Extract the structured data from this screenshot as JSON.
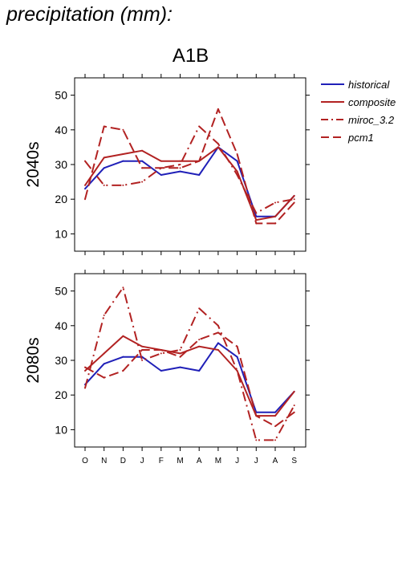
{
  "page": {
    "title": "precipitation (mm):",
    "scenario": "A1B"
  },
  "colors": {
    "historical": "#2020b8",
    "models": "#b22222",
    "axis": "#000000"
  },
  "chart_data": [
    {
      "type": "line",
      "panel_label": "2040s",
      "categories": [
        "O",
        "N",
        "D",
        "J",
        "F",
        "M",
        "A",
        "M",
        "J",
        "J",
        "A",
        "S"
      ],
      "ylim": [
        5,
        55
      ],
      "yticks": [
        10,
        20,
        30,
        40,
        50
      ],
      "grid": false,
      "legend": "outside-right",
      "series": [
        {
          "name": "historical",
          "style": "solid",
          "values": [
            23,
            29,
            31,
            31,
            27,
            28,
            27,
            35,
            31,
            15,
            15,
            21
          ]
        },
        {
          "name": "composite",
          "style": "solid",
          "values": [
            24,
            32,
            33,
            34,
            31,
            31,
            31,
            35,
            28,
            14,
            15,
            21
          ]
        },
        {
          "name": "miroc_3.2",
          "style": "dashdot",
          "values": [
            31,
            24,
            24,
            25,
            29,
            30,
            41,
            36,
            27,
            16,
            19,
            20
          ]
        },
        {
          "name": "pcm1",
          "style": "dashed",
          "values": [
            20,
            41,
            40,
            29,
            29,
            29,
            31,
            46,
            33,
            13,
            13,
            19
          ]
        }
      ]
    },
    {
      "type": "line",
      "panel_label": "2080s",
      "categories": [
        "O",
        "N",
        "D",
        "J",
        "F",
        "M",
        "A",
        "M",
        "J",
        "J",
        "A",
        "S"
      ],
      "ylim": [
        5,
        55
      ],
      "yticks": [
        10,
        20,
        30,
        40,
        50
      ],
      "grid": false,
      "series": [
        {
          "name": "historical",
          "style": "solid",
          "values": [
            23,
            29,
            31,
            31,
            27,
            28,
            27,
            35,
            31,
            15,
            15,
            21
          ]
        },
        {
          "name": "composite",
          "style": "solid",
          "values": [
            27,
            32,
            37,
            34,
            33,
            32,
            34,
            33,
            27,
            14,
            14,
            21
          ]
        },
        {
          "name": "miroc_3.2",
          "style": "dashdot",
          "values": [
            22,
            43,
            51,
            30,
            32,
            33,
            45,
            40,
            27,
            7,
            7,
            17
          ]
        },
        {
          "name": "pcm1",
          "style": "dashed",
          "values": [
            28,
            25,
            27,
            33,
            33,
            31,
            36,
            38,
            34,
            14,
            11,
            15
          ]
        }
      ]
    }
  ]
}
